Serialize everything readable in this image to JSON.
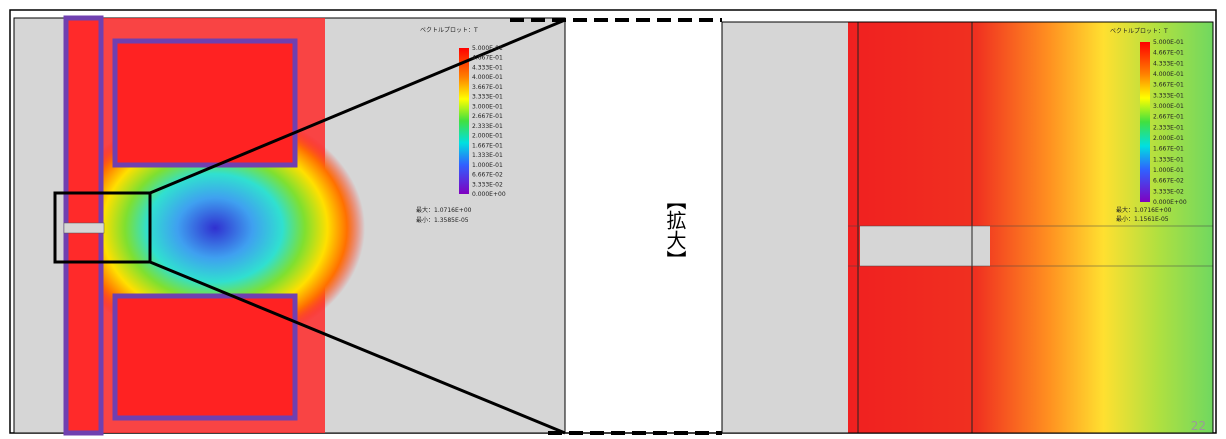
{
  "left_panel": {
    "legend_title": "ベクトルプロット：T",
    "legend_labels": [
      "5.000E-01",
      "4.667E-01",
      "4.333E-01",
      "4.000E-01",
      "3.667E-01",
      "3.333E-01",
      "3.000E-01",
      "2.667E-01",
      "2.333E-01",
      "2.000E-01",
      "1.667E-01",
      "1.333E-01",
      "1.000E-01",
      "6.667E-02",
      "3.333E-02",
      "0.000E+00"
    ],
    "max_label": "最大：1.0716E+00",
    "min_label": "最小：1.3585E-05"
  },
  "zoom_label": "【拡大】",
  "right_panel": {
    "legend_title": "ベクトルプロット：T",
    "legend_labels": [
      "5.000E-01",
      "4.667E-01",
      "4.333E-01",
      "4.000E-01",
      "3.667E-01",
      "3.333E-01",
      "3.000E-01",
      "2.667E-01",
      "2.333E-01",
      "2.000E-01",
      "1.667E-01",
      "1.333E-01",
      "1.000E-01",
      "6.667E-02",
      "3.333E-02",
      "0.000E+00"
    ],
    "max_label": "最大：1.0716E+00",
    "min_label": "最小：1.1561E-05"
  },
  "page_number": "22"
}
